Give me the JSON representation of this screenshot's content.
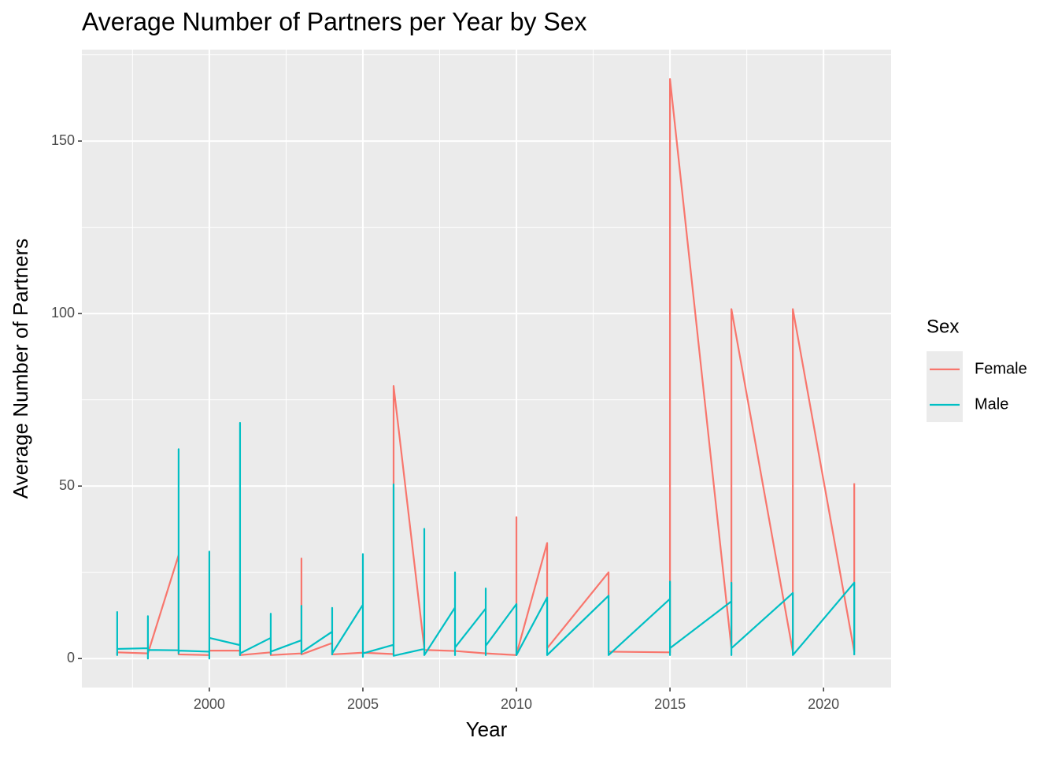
{
  "chart_data": {
    "type": "line",
    "title": "Average Number of Partners per Year by Sex",
    "x_label": "Year",
    "y_label": "Average Number of Partners",
    "legend_title": "Sex",
    "legend_position": "right",
    "grid": true,
    "xlim": [
      1995.85,
      2022.2
    ],
    "ylim": [
      -8.4,
      176.5
    ],
    "xticks": [
      2000,
      2005,
      2010,
      2015,
      2020
    ],
    "yticks": [
      0,
      50,
      100,
      150
    ],
    "series": [
      {
        "name": "Female",
        "color": "#f8766d",
        "x": [
          1997,
          1997,
          1998,
          1999,
          1999,
          2000,
          2000,
          2001,
          2001,
          2002,
          2002,
          2003,
          2003,
          2003,
          2004,
          2004,
          2005,
          2006,
          2006,
          2007,
          2007,
          2008,
          2009,
          2010,
          2010,
          2010,
          2011,
          2011,
          2013,
          2013,
          2015,
          2015,
          2017,
          2017,
          2019,
          2019,
          2021,
          2021
        ],
        "values": [
          1.0,
          1.8,
          1.5,
          30,
          1.2,
          1.0,
          2.3,
          2.3,
          1.0,
          1.8,
          1.0,
          1.5,
          29,
          1.2,
          4.5,
          1.2,
          1.7,
          1.3,
          79,
          3.0,
          2.5,
          2.2,
          1.5,
          1.0,
          41,
          1.2,
          33.5,
          3.0,
          25,
          2.0,
          1.8,
          168,
          3.0,
          101.3,
          2.0,
          101.3,
          2.0,
          50.8
        ]
      },
      {
        "name": "Male",
        "color": "#00bfc4",
        "x": [
          1997,
          1997,
          1997,
          1998,
          1998,
          1998,
          1998,
          1999,
          1999,
          1999,
          1999,
          2000,
          2000,
          2000,
          2000,
          2001,
          2001,
          2001,
          2001,
          2002,
          2002,
          2002,
          2002,
          2003,
          2003,
          2003,
          2003,
          2004,
          2004,
          2004,
          2004,
          2005,
          2005,
          2005,
          2005,
          2006,
          2006,
          2006,
          2007,
          2007,
          2007,
          2008,
          2008,
          2008,
          2008,
          2009,
          2009,
          2009,
          2009,
          2010,
          2010,
          2011,
          2011,
          2013,
          2013,
          2015,
          2015,
          2015,
          2015,
          2017,
          2017,
          2017,
          2017,
          2019,
          2019,
          2021,
          2021
        ],
        "values": [
          13.7,
          1.0,
          2.8,
          3.0,
          12.3,
          0,
          2.5,
          2.4,
          60.7,
          1.5,
          2.3,
          2.0,
          31,
          0,
          6.0,
          3.9,
          68.3,
          1.0,
          1.5,
          6.0,
          13.0,
          1.3,
          2.0,
          5.3,
          15.3,
          1.5,
          1.8,
          7.8,
          14.7,
          1.2,
          1.5,
          15.6,
          30.3,
          0.5,
          1.5,
          4.0,
          50.5,
          0.8,
          2.8,
          37.6,
          1.0,
          14.8,
          25,
          1.0,
          3.2,
          14.5,
          20.3,
          1.0,
          3.7,
          15.8,
          1.0,
          17.7,
          1.0,
          18.2,
          1.0,
          17.3,
          22.3,
          1.0,
          3.0,
          16.6,
          22,
          1.0,
          3.0,
          19,
          1.0,
          22,
          1.0
        ]
      }
    ]
  }
}
